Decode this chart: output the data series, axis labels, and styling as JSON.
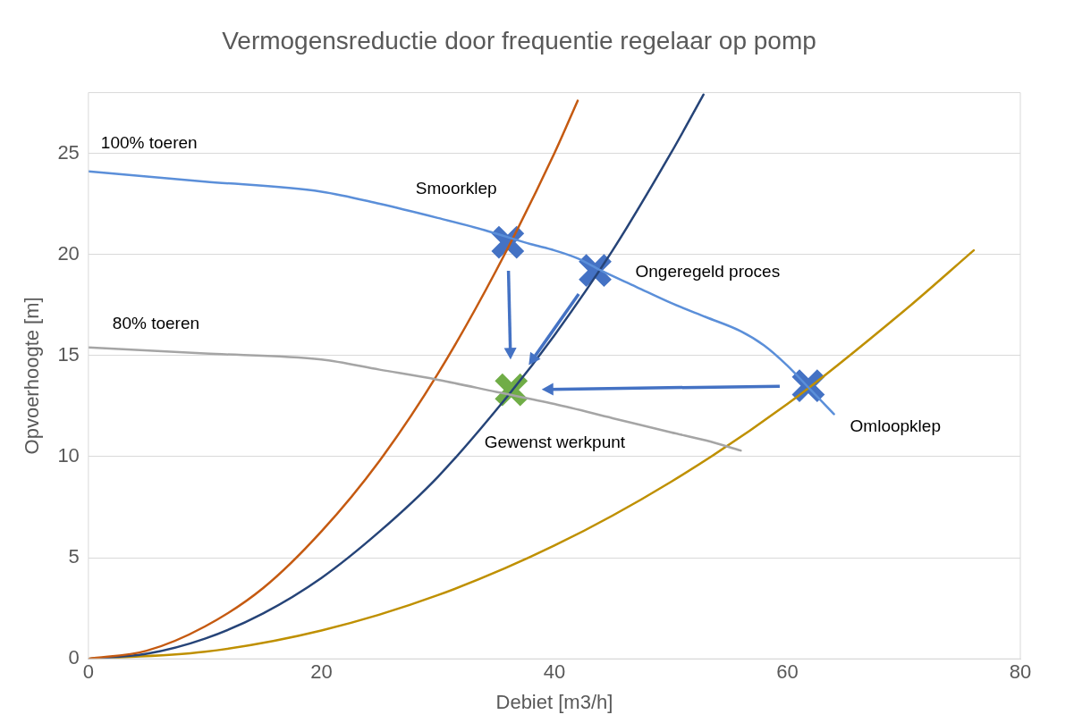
{
  "chart_data": {
    "type": "line",
    "title": "Vermogensreductie door frequentie regelaar op pomp",
    "xlabel": "Debiet [m3/h]",
    "ylabel": "Opvoerhoogte [m]",
    "xlim": [
      0,
      80
    ],
    "xticks": [
      0,
      20,
      40,
      60,
      80
    ],
    "ylim": [
      0,
      28
    ],
    "yticks": [
      0,
      5,
      10,
      15,
      20,
      25
    ],
    "grid": "y",
    "legend": false,
    "line_style": "solid",
    "series": [
      {
        "type": "line",
        "color": "#5b8fd9",
        "x": [
          0,
          10,
          20,
          25,
          30,
          34,
          38,
          40,
          42,
          44,
          47,
          50,
          53,
          56,
          58,
          60,
          62,
          64
        ],
        "values": [
          24.1,
          23.6,
          23.1,
          22.5,
          21.8,
          21.2,
          20.5,
          20.2,
          19.8,
          19.2,
          18.4,
          17.6,
          16.9,
          16.2,
          15.5,
          14.5,
          13.3,
          12.1
        ]
      },
      {
        "type": "line",
        "color": "#a5a5a5",
        "x": [
          0,
          10,
          20,
          25,
          30,
          35,
          40,
          45,
          50,
          53,
          56
        ],
        "values": [
          15.4,
          15.1,
          14.8,
          14.3,
          13.8,
          13.2,
          12.6,
          11.9,
          11.2,
          10.8,
          10.3
        ]
      },
      {
        "type": "line",
        "color": "#c55a11",
        "x": [
          0,
          5,
          10,
          15,
          20,
          25,
          30,
          35,
          40,
          42
        ],
        "values": [
          0,
          0.4,
          1.6,
          3.5,
          6.3,
          9.8,
          14.1,
          19.2,
          25,
          27.6
        ]
      },
      {
        "type": "line",
        "color": "#264478",
        "x": [
          0,
          5,
          10,
          15,
          20,
          25,
          30,
          36,
          40,
          45,
          50,
          52.8
        ],
        "values": [
          0,
          0.25,
          1,
          2.25,
          4,
          6.3,
          9,
          13,
          16,
          20.2,
          25,
          27.9
        ]
      },
      {
        "type": "line",
        "color": "#bf9000",
        "x": [
          0,
          10,
          20,
          30,
          40,
          50,
          60,
          70,
          76
        ],
        "values": [
          0,
          0.35,
          1.4,
          3.15,
          5.6,
          8.75,
          12.6,
          17.2,
          20.2
        ]
      },
      {
        "type": "scatter",
        "marker": "cross",
        "color": "#4472c4",
        "x": [
          36,
          43.5,
          61.8
        ],
        "values": [
          20.6,
          19.2,
          13.5
        ]
      },
      {
        "type": "scatter",
        "marker": "cross",
        "color": "#70ad47",
        "x": [
          36.3
        ],
        "values": [
          13.3
        ]
      }
    ],
    "annotations": [
      {
        "text": "100% toeren",
        "x": 0,
        "y": 24.1
      },
      {
        "text": "Smoorklep",
        "x": 36,
        "y": 20.6
      },
      {
        "text": "Ongeregeld proces",
        "x": 43.5,
        "y": 19.2
      },
      {
        "text": "80% toeren",
        "x": 0,
        "y": 15.4
      },
      {
        "text": "Gewenst werkpunt",
        "x": 36.3,
        "y": 13.3
      },
      {
        "text": "Omloopklep",
        "x": 64,
        "y": 12.1
      }
    ]
  }
}
